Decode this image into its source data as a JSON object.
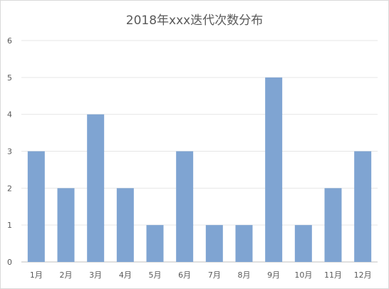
{
  "chart_data": {
    "type": "bar",
    "title": "2018年xxx迭代次数分布",
    "categories": [
      "1月",
      "2月",
      "3月",
      "4月",
      "5月",
      "6月",
      "7月",
      "8月",
      "9月",
      "10月",
      "11月",
      "12月"
    ],
    "values": [
      3,
      2,
      4,
      2,
      1,
      3,
      1,
      1,
      5,
      1,
      2,
      3
    ],
    "ylim": [
      0,
      6
    ],
    "yticks": [
      0,
      1,
      2,
      3,
      4,
      5,
      6
    ],
    "grid": true,
    "colors": {
      "bar": "#7fa4d2"
    }
  }
}
